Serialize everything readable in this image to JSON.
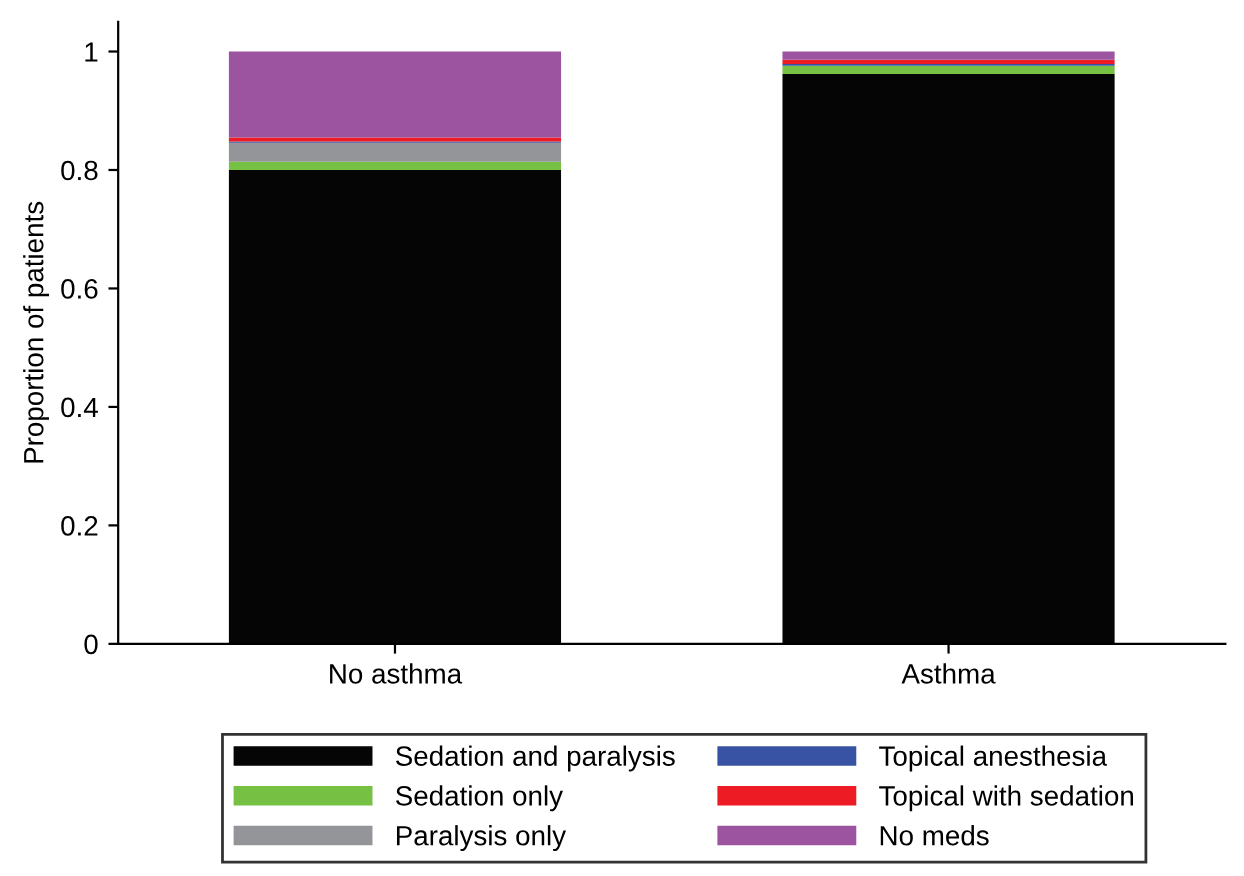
{
  "chart_data": {
    "type": "bar",
    "ylabel": "Proportion of patients",
    "categories": [
      "No asthma",
      "Asthma"
    ],
    "stacked": true,
    "series": [
      {
        "name": "Sedation and paralysis",
        "color": "#050505",
        "values": [
          0.8,
          0.962
        ]
      },
      {
        "name": "Sedation only",
        "color": "#76c043",
        "values": [
          0.014,
          0.014
        ]
      },
      {
        "name": "Paralysis only",
        "color": "#939598",
        "values": [
          0.032,
          0
        ]
      },
      {
        "name": "Topical anesthesia",
        "color": "#3953a4",
        "values": [
          0.002,
          0.003
        ]
      },
      {
        "name": "Topical with sedation",
        "color": "#ed1c24",
        "values": [
          0.007,
          0.007
        ]
      },
      {
        "name": "No meds",
        "color": "#9c53a0",
        "values": [
          0.145,
          0.014
        ]
      }
    ],
    "ylim": [
      0,
      1.05
    ],
    "yticks": [
      0,
      0.2,
      0.4,
      0.6,
      0.8,
      1
    ],
    "grid": false,
    "legend": "bottom"
  }
}
